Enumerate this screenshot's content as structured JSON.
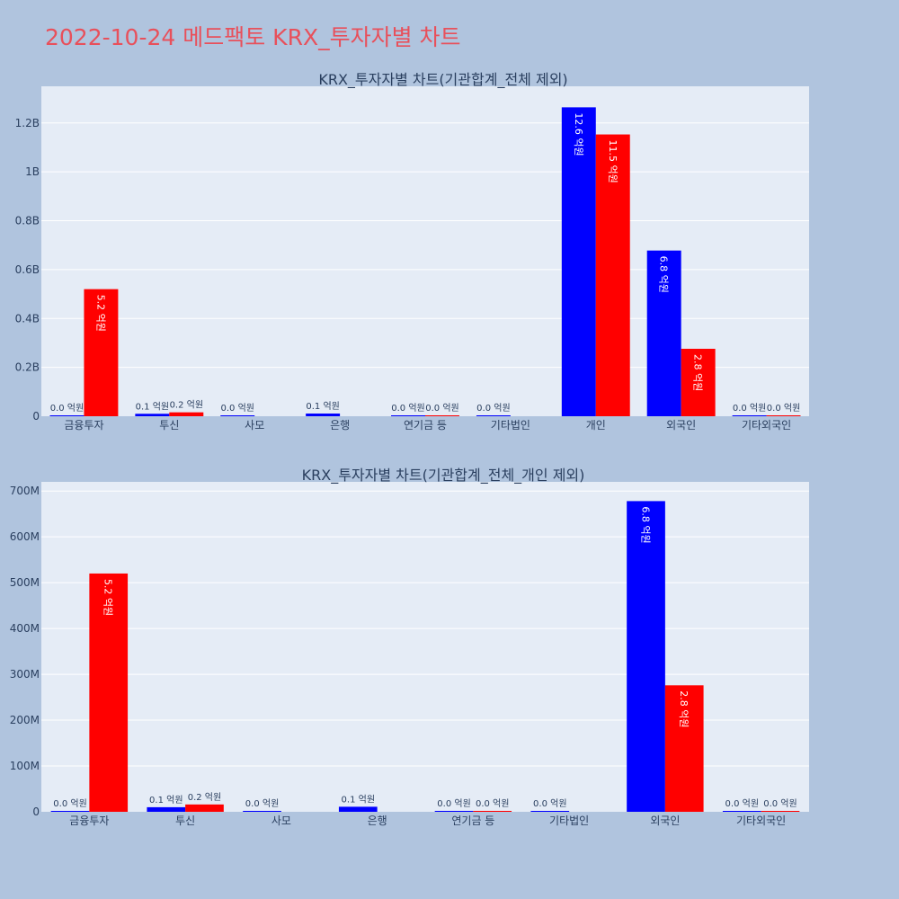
{
  "page": {
    "title": "2022-10-24 메드팩토 KRX_투자자별 차트"
  },
  "colors": {
    "buy": "#0000ff",
    "sell": "#ff0000",
    "plot_bg": "#e5ecf6",
    "page_bg": "#b0c4de",
    "title": "#e8505b"
  },
  "chart_data": [
    {
      "type": "bar",
      "title": "KRX_투자자별 차트(기관합계_전체 제외)",
      "categories": [
        "금융투자",
        "투신",
        "사모",
        "은행",
        "연기금 등",
        "기타법인",
        "개인",
        "외국인",
        "기타외국인"
      ],
      "series": [
        {
          "values": [
            1000000,
            10000000,
            2000000,
            11000000,
            2000000,
            1000000,
            1264000000,
            678000000,
            1000000
          ],
          "labels": [
            "0.0 억원",
            "0.1 억원",
            "0.0 억원",
            "0.1 억원",
            "0.0 억원",
            "0.0 억원",
            "12.6 억원",
            "6.8 억원",
            "0.0 억원"
          ]
        },
        {
          "values": [
            520000000,
            16000000,
            0,
            0,
            2000000,
            0,
            1153000000,
            276000000,
            1000000
          ],
          "labels": [
            "5.2 억원",
            "0.2 억원",
            "",
            "",
            "0.0 억원",
            "",
            "11.5 억원",
            "2.8 억원",
            "0.0 억원"
          ]
        }
      ],
      "ylim": [
        0,
        1350000000
      ],
      "yticks": [
        0,
        200000000,
        400000000,
        600000000,
        800000000,
        1000000000,
        1200000000
      ],
      "ytick_labels": [
        "0",
        "0.2B",
        "0.4B",
        "0.6B",
        "0.8B",
        "1B",
        "1.2B"
      ],
      "grid": true
    },
    {
      "type": "bar",
      "title": "KRX_투자자별 차트(기관합계_전체_개인 제외)",
      "categories": [
        "금융투자",
        "투신",
        "사모",
        "은행",
        "연기금 등",
        "기타법인",
        "외국인",
        "기타외국인"
      ],
      "series": [
        {
          "values": [
            1000000,
            10000000,
            2000000,
            11000000,
            2000000,
            1000000,
            678000000,
            1000000
          ],
          "labels": [
            "0.0 억원",
            "0.1 억원",
            "0.0 억원",
            "0.1 억원",
            "0.0 억원",
            "0.0 억원",
            "6.8 억원",
            "0.0 억원"
          ]
        },
        {
          "values": [
            520000000,
            16000000,
            0,
            0,
            2000000,
            0,
            276000000,
            1000000
          ],
          "labels": [
            "5.2 억원",
            "0.2 억원",
            "",
            "",
            "0.0 억원",
            "",
            "2.8 억원",
            "0.0 억원"
          ]
        }
      ],
      "ylim": [
        0,
        720000000
      ],
      "yticks": [
        0,
        100000000,
        200000000,
        300000000,
        400000000,
        500000000,
        600000000,
        700000000
      ],
      "ytick_labels": [
        "0",
        "100M",
        "200M",
        "300M",
        "400M",
        "500M",
        "600M",
        "700M"
      ],
      "grid": true
    }
  ]
}
